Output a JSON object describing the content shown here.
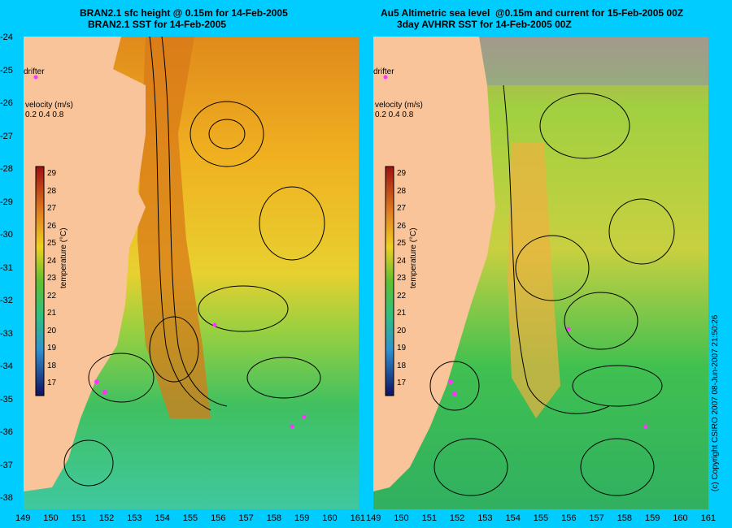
{
  "left_panel": {
    "title_line1": "BRAN2.1 sfc height @ 0.15m for 14-Feb-2005",
    "title_line2": "BRAN2.1 SST for 14-Feb-2005",
    "drifter_label": "drifter",
    "velocity_label": "velocity (m/s)",
    "velocity_scale": "0.2 0.4 0.8"
  },
  "right_panel": {
    "title_line1": "Au5 Altimetric sea level  @0.15m and current for 15-Feb-2005 00Z",
    "title_line2": "3day AVHRR SST for 14-Feb-2005 00Z",
    "drifter_label": "drifter",
    "velocity_label": "velocity (m/s)",
    "velocity_scale": "0.2 0.4 0.8"
  },
  "colorbar": {
    "label": "temperature (°C)",
    "ticks": [
      "29",
      "28",
      "27",
      "26",
      "25",
      "24",
      "23",
      "22",
      "21",
      "20",
      "19",
      "18",
      "17"
    ]
  },
  "axes": {
    "lat_ticks": [
      "-24",
      "-25",
      "-26",
      "-27",
      "-28",
      "-29",
      "-30",
      "-31",
      "-32",
      "-33",
      "-34",
      "-35",
      "-36",
      "-37",
      "-38"
    ],
    "lon_ticks": [
      "149",
      "150",
      "151",
      "152",
      "153",
      "154",
      "155",
      "156",
      "157",
      "158",
      "159",
      "160",
      "161"
    ],
    "lon_ticks_right": [
      "149",
      "150",
      "151",
      "152",
      "153",
      "154",
      "155",
      "156",
      "157",
      "158",
      "159",
      "160",
      "161"
    ]
  },
  "copyright": "(c) Copyright CSIRO 2007 08-Jun-2007 21:50:26",
  "colors": {
    "background": "#00ccff",
    "land": "#f9c49a",
    "drifter": "#ff33ff",
    "warm": "#d97a1a",
    "mid": "#f0c020",
    "cool": "#33cc66"
  }
}
